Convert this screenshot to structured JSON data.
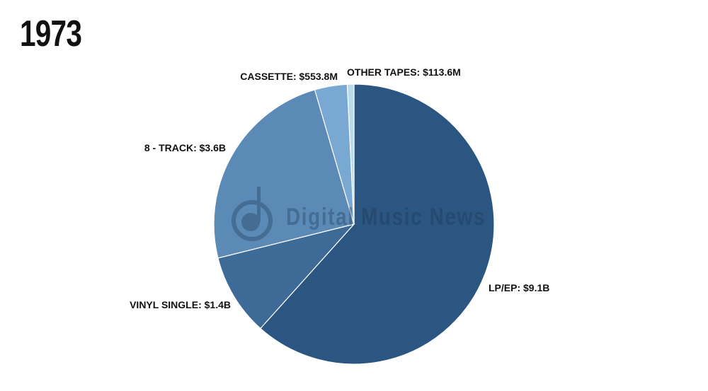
{
  "header": {
    "year": "1973"
  },
  "watermark": {
    "text": "Digital Music News",
    "icon": "music-note-icon"
  },
  "colors": {
    "lp_ep": "#2b5681",
    "vinyl_single": "#3e6a98",
    "eight_track": "#5b8ab6",
    "cassette": "#79a9d2",
    "other_tapes": "#b9d9ef",
    "slice_border": "#ffffff"
  },
  "chart_data": {
    "type": "pie",
    "title": "1973",
    "start_angle_deg": 0,
    "direction": "clockwise",
    "slices": [
      {
        "label": "LP/EP: $9.1B",
        "category": "LP/EP",
        "value": 9.1,
        "unit": "B",
        "color": "#2b5681"
      },
      {
        "label": "VINYL SINGLE: $1.4B",
        "category": "VINYL SINGLE",
        "value": 1.4,
        "unit": "B",
        "color": "#3e6a98"
      },
      {
        "label": "8 - TRACK: $3.6B",
        "category": "8 - TRACK",
        "value": 3.6,
        "unit": "B",
        "color": "#5b8ab6"
      },
      {
        "label": "CASSETTE: $553.8M",
        "category": "CASSETTE",
        "value": 0.5538,
        "unit": "B",
        "color": "#79a9d2"
      },
      {
        "label": "OTHER TAPES: $113.6M",
        "category": "OTHER TAPES",
        "value": 0.1136,
        "unit": "B",
        "color": "#b9d9ef"
      }
    ]
  }
}
